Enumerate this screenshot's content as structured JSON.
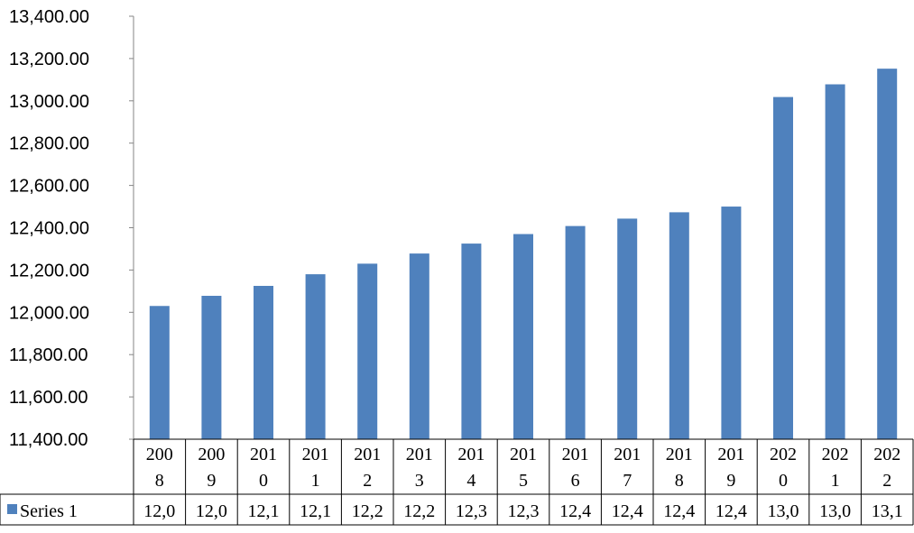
{
  "chart_data": {
    "type": "bar",
    "title": "",
    "xlabel": "",
    "ylabel": "",
    "ylim": [
      11400,
      13400
    ],
    "ytick_step": 200,
    "ytick_labels": [
      "11,400.00",
      "11,600.00",
      "11,800.00",
      "12,000.00",
      "12,200.00",
      "12,400.00",
      "12,600.00",
      "12,800.00",
      "13,000.00",
      "13,200.00",
      "13,400.00"
    ],
    "categories": [
      "2008",
      "2009",
      "2010",
      "2011",
      "2012",
      "2013",
      "2014",
      "2015",
      "2016",
      "2017",
      "2018",
      "2019",
      "2020",
      "2021",
      "2022"
    ],
    "category_lines": [
      [
        "200",
        "8"
      ],
      [
        "200",
        "9"
      ],
      [
        "201",
        "0"
      ],
      [
        "201",
        "1"
      ],
      [
        "201",
        "2"
      ],
      [
        "201",
        "3"
      ],
      [
        "201",
        "4"
      ],
      [
        "201",
        "5"
      ],
      [
        "201",
        "6"
      ],
      [
        "201",
        "7"
      ],
      [
        "201",
        "8"
      ],
      [
        "201",
        "9"
      ],
      [
        "202",
        "0"
      ],
      [
        "202",
        "1"
      ],
      [
        "202",
        "2"
      ]
    ],
    "series": [
      {
        "name": "Series 1",
        "color": "#4f81bd",
        "values": [
          12030,
          12078,
          12125,
          12180,
          12230,
          12278,
          12325,
          12370,
          12408,
          12443,
          12473,
          12500,
          13018,
          13078,
          13152
        ],
        "table_labels": [
          "12,0",
          "12,0",
          "12,1",
          "12,1",
          "12,2",
          "12,2",
          "12,3",
          "12,3",
          "12,4",
          "12,4",
          "12,4",
          "12,4",
          "13,0",
          "13,0",
          "13,1"
        ]
      }
    ],
    "grid": false,
    "legend": "data-table"
  }
}
